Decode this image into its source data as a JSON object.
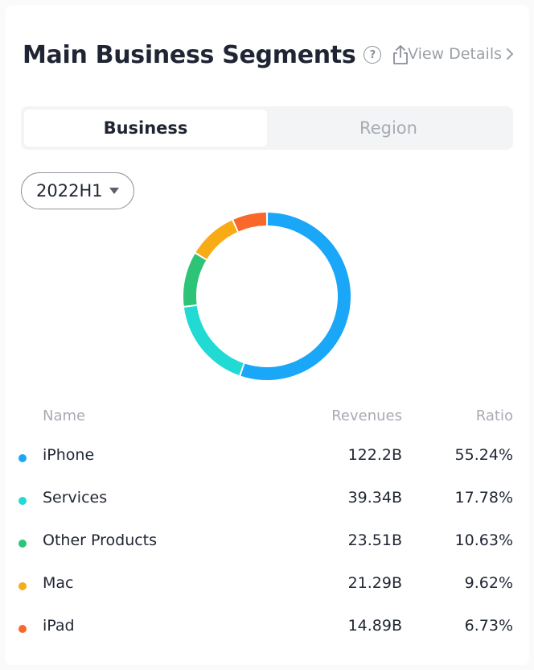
{
  "header": {
    "title": "Main Business Segments",
    "help_icon": "question-circle-icon",
    "share_icon": "share-icon",
    "view_details_label": "View Details",
    "chevron_icon": "chevron-right-icon"
  },
  "tabs": [
    {
      "label": "Business",
      "active": true
    },
    {
      "label": "Region",
      "active": false
    }
  ],
  "period_selector": {
    "value": "2022H1",
    "caret_icon": "caret-down-icon"
  },
  "table": {
    "headers": {
      "name": "Name",
      "revenues": "Revenues",
      "ratio": "Ratio"
    },
    "rows": [
      {
        "name": "iPhone",
        "revenues": "122.2B",
        "ratio": "55.24%",
        "color": "#1aa7f7"
      },
      {
        "name": "Services",
        "revenues": "39.34B",
        "ratio": "17.78%",
        "color": "#21dad4"
      },
      {
        "name": "Other Products",
        "revenues": "23.51B",
        "ratio": "10.63%",
        "color": "#2ec478"
      },
      {
        "name": "Mac",
        "revenues": "21.29B",
        "ratio": "9.62%",
        "color": "#f8ab14"
      },
      {
        "name": "iPad",
        "revenues": "14.89B",
        "ratio": "6.73%",
        "color": "#f9672b"
      }
    ]
  },
  "chart_data": {
    "type": "pie",
    "donut": true,
    "categories": [
      "iPhone",
      "Services",
      "Other Products",
      "Mac",
      "iPad"
    ],
    "values": [
      55.24,
      17.78,
      10.63,
      9.62,
      6.73
    ],
    "colors": [
      "#1aa7f7",
      "#21dad4",
      "#2ec478",
      "#f8ab14",
      "#f9672b"
    ],
    "start_angle_deg": 0,
    "direction": "clockwise"
  },
  "colors": {
    "text_primary": "#1f2533",
    "text_muted": "#a7abb3",
    "tab_background": "#f3f4f6"
  }
}
